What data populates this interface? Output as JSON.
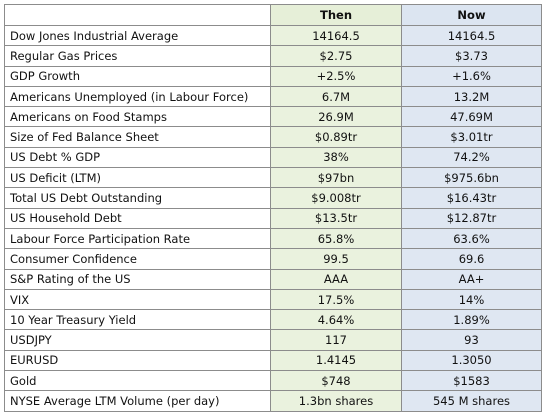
{
  "table": {
    "columns": [
      "",
      "Then",
      "Now"
    ],
    "rows": [
      {
        "label": "Dow Jones Industrial Average",
        "then": "14164.5",
        "now": "14164.5"
      },
      {
        "label": "Regular Gas Prices",
        "then": "$2.75",
        "now": "$3.73"
      },
      {
        "label": "GDP Growth",
        "then": "+2.5%",
        "now": "+1.6%"
      },
      {
        "label": "Americans Unemployed (in Labour Force)",
        "then": "6.7M",
        "now": "13.2M"
      },
      {
        "label": "Americans on Food Stamps",
        "then": "26.9M",
        "now": "47.69M"
      },
      {
        "label": "Size of Fed Balance Sheet",
        "then": "$0.89tr",
        "now": "$3.01tr"
      },
      {
        "label": "US Debt % GDP",
        "then": "38%",
        "now": "74.2%"
      },
      {
        "label": "US Deficit (LTM)",
        "then": "$97bn",
        "now": "$975.6bn"
      },
      {
        "label": "Total US Debt Outstanding",
        "then": "$9.008tr",
        "now": "$16.43tr"
      },
      {
        "label": "US Household Debt",
        "then": "$13.5tr",
        "now": "$12.87tr"
      },
      {
        "label": "Labour Force Participation Rate",
        "then": "65.8%",
        "now": "63.6%"
      },
      {
        "label": "Consumer Confidence",
        "then": "99.5",
        "now": "69.6"
      },
      {
        "label": "S&P Rating of the US",
        "then": "AAA",
        "now": "AA+"
      },
      {
        "label": "VIX",
        "then": "17.5%",
        "now": "14%"
      },
      {
        "label": "10 Year Treasury Yield",
        "then": "4.64%",
        "now": "1.89%"
      },
      {
        "label": "USDJPY",
        "then": "117",
        "now": "93"
      },
      {
        "label": "EURUSD",
        "then": "1.4145",
        "now": "1.3050"
      },
      {
        "label": "Gold",
        "then": "$748",
        "now": "$1583"
      },
      {
        "label": "NYSE Average LTM Volume (per day)",
        "then": "1.3bn shares",
        "now": "545 M shares"
      }
    ]
  },
  "colors": {
    "then_column": "#eaf2de",
    "now_column": "#dfe7f2",
    "border": "#8c8c8c"
  }
}
